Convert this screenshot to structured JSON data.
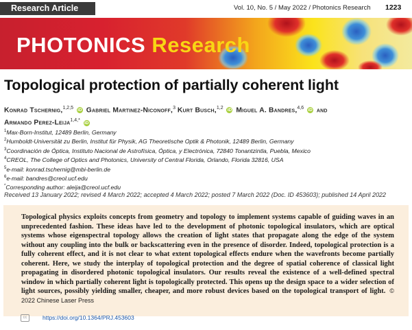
{
  "header": {
    "tag": "Research Article",
    "issue": "Vol. 10, No. 5 / May 2022 / Photonics Research",
    "page": "1223"
  },
  "banner": {
    "brand_word1": "PHOTONICS",
    "brand_word2": "Research"
  },
  "title": "Topological protection of partially coherent light",
  "authors": [
    {
      "name": "Konrad Tschernig,",
      "sup": "1,2,5"
    },
    {
      "name": "Gabriel Martinez-Niconoff,",
      "sup": "3"
    },
    {
      "name": "Kurt Busch,",
      "sup": "1,2"
    },
    {
      "name": "Miguel A. Bandres,",
      "sup": "4,6"
    },
    {
      "name": "and",
      "sup": ""
    },
    {
      "name": "Armando Perez-Leija",
      "sup": "1,4,*"
    }
  ],
  "affiliations": [
    {
      "sup": "1",
      "text": "Max-Born-Institut, 12489 Berlin, Germany"
    },
    {
      "sup": "2",
      "text": "Humboldt-Universität zu Berlin, Institut für Physik, AG Theoretische Optik & Photonik, 12489 Berlin, Germany"
    },
    {
      "sup": "3",
      "text": "Coordinación de Óptica, Instituto Nacional de Astrofísica, Óptica, y Electrónica, 72840 Tonantzintla, Puebla, Mexico"
    },
    {
      "sup": "4",
      "text": "CREOL, The College of Optics and Photonics, University of Central Florida, Orlando, Florida 32816, USA"
    },
    {
      "sup": "5",
      "text": "e-mail: konrad.tschernig@mbi-berlin.de"
    },
    {
      "sup": "6",
      "text": "e-mail: bandres@creol.ucf.edu"
    },
    {
      "sup": "*",
      "text": "Corresponding author: aleija@creol.ucf.edu"
    }
  ],
  "dates": "Received 13 January 2022; revised 4 March 2022; accepted 4 March 2022; posted 7 March 2022 (Doc. ID 453603); published 14 April 2022",
  "abstract": {
    "text": "Topological physics exploits concepts from geometry and topology to implement systems capable of guiding waves in an unprecedented fashion. These ideas have led to the development of photonic topological insulators, which are optical systems whose eigenspectral topology allows the creation of light states that propagate along the edge of the system without any coupling into the bulk or backscattering even in the presence of disorder. Indeed, topological protection is a fully coherent effect, and it is not clear to what extent topological effects endure when the wavefronts become partially coherent. Here, we study the interplay of topological protection and the degree of spatial coherence of classical light propagating in disordered photonic topological insulators. Our results reveal the existence of a well-defined spectral window in which partially coherent light is topologically protected. This opens up the design space to a wider selection of light sources, possibly yielding smaller, cheaper, and more robust devices based on the topological transport of light.",
    "copyright": "© 2022 Chinese Laser Press"
  },
  "doi": "https://doi.org/10.1364/PRJ.453603",
  "colors": {
    "banner_red": "#d8212f",
    "banner_yellow": "#f8d614",
    "abstract_bg": "#fbeedd",
    "orcid": "#a6ce39",
    "doi_link": "#1a56a8"
  },
  "icons": [
    "orcid-icon",
    "cc-license-icon"
  ]
}
